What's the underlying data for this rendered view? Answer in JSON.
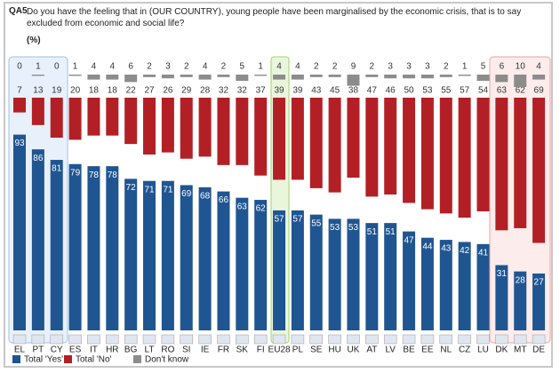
{
  "chart_data": {
    "type": "stacked-bar",
    "question_id": "QA5",
    "title": "Do you have the feeling that in (OUR COUNTRY), young people have been marginalised by the economic crisis, that is to say excluded from economic and social life?",
    "subtitle": "(%)",
    "categories": [
      "EL",
      "PT",
      "CY",
      "ES",
      "IT",
      "HR",
      "BG",
      "LT",
      "RO",
      "SI",
      "IE",
      "FR",
      "SK",
      "FI",
      "EU28",
      "PL",
      "SE",
      "HU",
      "UK",
      "AT",
      "LV",
      "BE",
      "EE",
      "NL",
      "CZ",
      "LU",
      "DK",
      "MT",
      "DE"
    ],
    "series": [
      {
        "name": "Total 'Yes'",
        "color": "#1f5591",
        "values": [
          93,
          86,
          81,
          79,
          78,
          78,
          72,
          71,
          71,
          69,
          68,
          66,
          63,
          62,
          57,
          57,
          55,
          53,
          53,
          51,
          51,
          47,
          44,
          43,
          42,
          41,
          31,
          28,
          27
        ]
      },
      {
        "name": "Total 'No'",
        "color": "#b22025",
        "values": [
          7,
          13,
          19,
          20,
          18,
          18,
          22,
          27,
          26,
          29,
          28,
          32,
          32,
          37,
          39,
          39,
          43,
          45,
          38,
          47,
          46,
          50,
          53,
          55,
          57,
          54,
          63,
          62,
          69
        ]
      },
      {
        "name": "Don't know",
        "color": "#8c8c8c",
        "values": [
          0,
          1,
          0,
          1,
          4,
          4,
          6,
          2,
          3,
          2,
          4,
          2,
          5,
          1,
          4,
          4,
          2,
          2,
          9,
          2,
          3,
          3,
          3,
          2,
          1,
          5,
          6,
          10,
          4
        ]
      }
    ]
  }
}
